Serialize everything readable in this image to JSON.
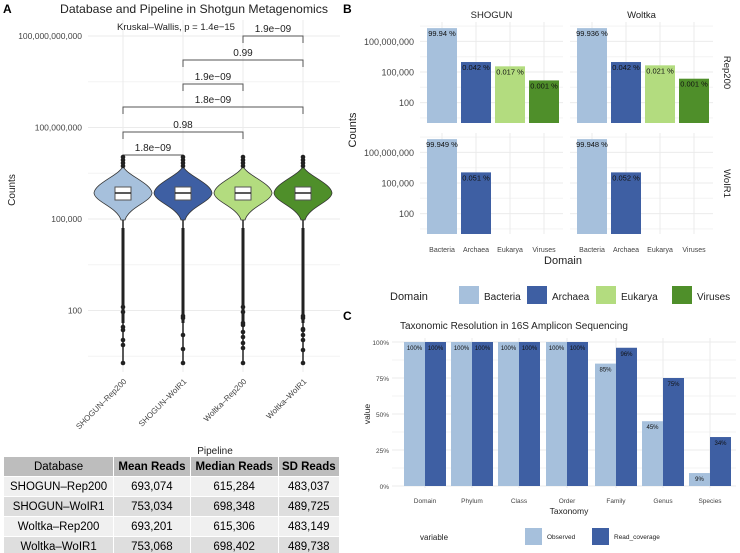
{
  "chart_data": [
    {
      "panel": "A",
      "type": "violin",
      "title": "Database and Pipeline in Shotgun Metagenomics",
      "xlabel": "Pipeline",
      "ylabel": "Counts",
      "yscale": "log10",
      "yticks": [
        "100",
        "100,000",
        "100,000,000",
        "100,000,000,000"
      ],
      "categories": [
        "SHOGUN–Rep200",
        "SHOGUN–WoIR1",
        "Woltka–Rep200",
        "Woltka–WoIR1"
      ],
      "colors": [
        "#a6c0dc",
        "#3e5fa3",
        "#b3dc7f",
        "#4f8f2a"
      ],
      "test": "Kruskal–Wallis, p = 1.4e−15",
      "comparisons": [
        {
          "a": 0,
          "b": 1,
          "p": "1.8e−09"
        },
        {
          "a": 0,
          "b": 2,
          "p": "0.98"
        },
        {
          "a": 0,
          "b": 3,
          "p": "1.8e−09"
        },
        {
          "a": 1,
          "b": 2,
          "p": "1.9e−09"
        },
        {
          "a": 1,
          "b": 3,
          "p": "0.99"
        },
        {
          "a": 2,
          "b": 3,
          "p": "1.9e−09"
        }
      ]
    },
    {
      "panel": "B",
      "type": "bar",
      "xlabel": "Domain",
      "ylabel": "Counts",
      "yscale": "log10",
      "yticks": [
        "100",
        "100,000",
        "100,000,000"
      ],
      "columns": [
        "SHOGUN",
        "Woltka"
      ],
      "rows": [
        "Rep200",
        "WoIR1"
      ],
      "categories": [
        "Bacteria",
        "Archaea",
        "Eukarya",
        "Viruses"
      ],
      "colors": [
        "#a6c0dc",
        "#3e5fa3",
        "#b3dc7f",
        "#4f8f2a"
      ],
      "legend_title": "Domain",
      "facets": [
        {
          "col": 0,
          "row": 0,
          "values": [
            2000000000,
            950000,
            360000,
            15000
          ],
          "labels": [
            "99.94 %",
            "0.042 %",
            "0.017 %",
            "0.001 %"
          ]
        },
        {
          "col": 1,
          "row": 0,
          "values": [
            2000000000,
            950000,
            450000,
            22000
          ],
          "labels": [
            "99.936 %",
            "0.042 %",
            "0.021 %",
            "0.001 %"
          ]
        },
        {
          "col": 0,
          "row": 1,
          "values": [
            2000000000,
            1100000,
            null,
            null
          ],
          "labels": [
            "99.949 %",
            "0.051 %",
            null,
            null
          ]
        },
        {
          "col": 1,
          "row": 1,
          "values": [
            2000000000,
            1100000,
            null,
            null
          ],
          "labels": [
            "99.948 %",
            "0.052 %",
            null,
            null
          ]
        }
      ]
    },
    {
      "panel": "C",
      "type": "bar",
      "title": "Taxonomic Resolution in 16S Amplicon Sequencing",
      "xlabel": "Taxonomy",
      "ylabel": "value",
      "yticks": [
        "0%",
        "25%",
        "50%",
        "75%",
        "100%"
      ],
      "ylim": [
        0,
        100
      ],
      "categories": [
        "Domain",
        "Phylum",
        "Class",
        "Order",
        "Family",
        "Genus",
        "Species"
      ],
      "legend_title": "variable",
      "series": [
        {
          "name": "Observed",
          "color": "#a6c0dc",
          "values": [
            100,
            100,
            100,
            100,
            85,
            45,
            9
          ],
          "labels": [
            "100%",
            "100%",
            "100%",
            "100%",
            "85%",
            "45%",
            "9%"
          ]
        },
        {
          "name": "Read_coverage",
          "color": "#3e5fa3",
          "values": [
            100,
            100,
            100,
            100,
            96,
            75,
            34
          ],
          "labels": [
            "100%",
            "100%",
            "100%",
            "100%",
            "96%",
            "75%",
            "34%"
          ]
        }
      ]
    }
  ],
  "panel_letters": [
    "A",
    "B",
    "C"
  ],
  "table": {
    "headers": [
      "Database",
      "Mean Reads",
      "Median Reads",
      "SD Reads"
    ],
    "rows": [
      [
        "SHOGUN–Rep200",
        "693,074",
        "615,284",
        "483,037"
      ],
      [
        "SHOGUN–WoIR1",
        "753,034",
        "698,348",
        "489,725"
      ],
      [
        "Woltka–Rep200",
        "693,201",
        "615,306",
        "483,149"
      ],
      [
        "Woltka–WoIR1",
        "753,068",
        "698,402",
        "489,738"
      ]
    ]
  }
}
